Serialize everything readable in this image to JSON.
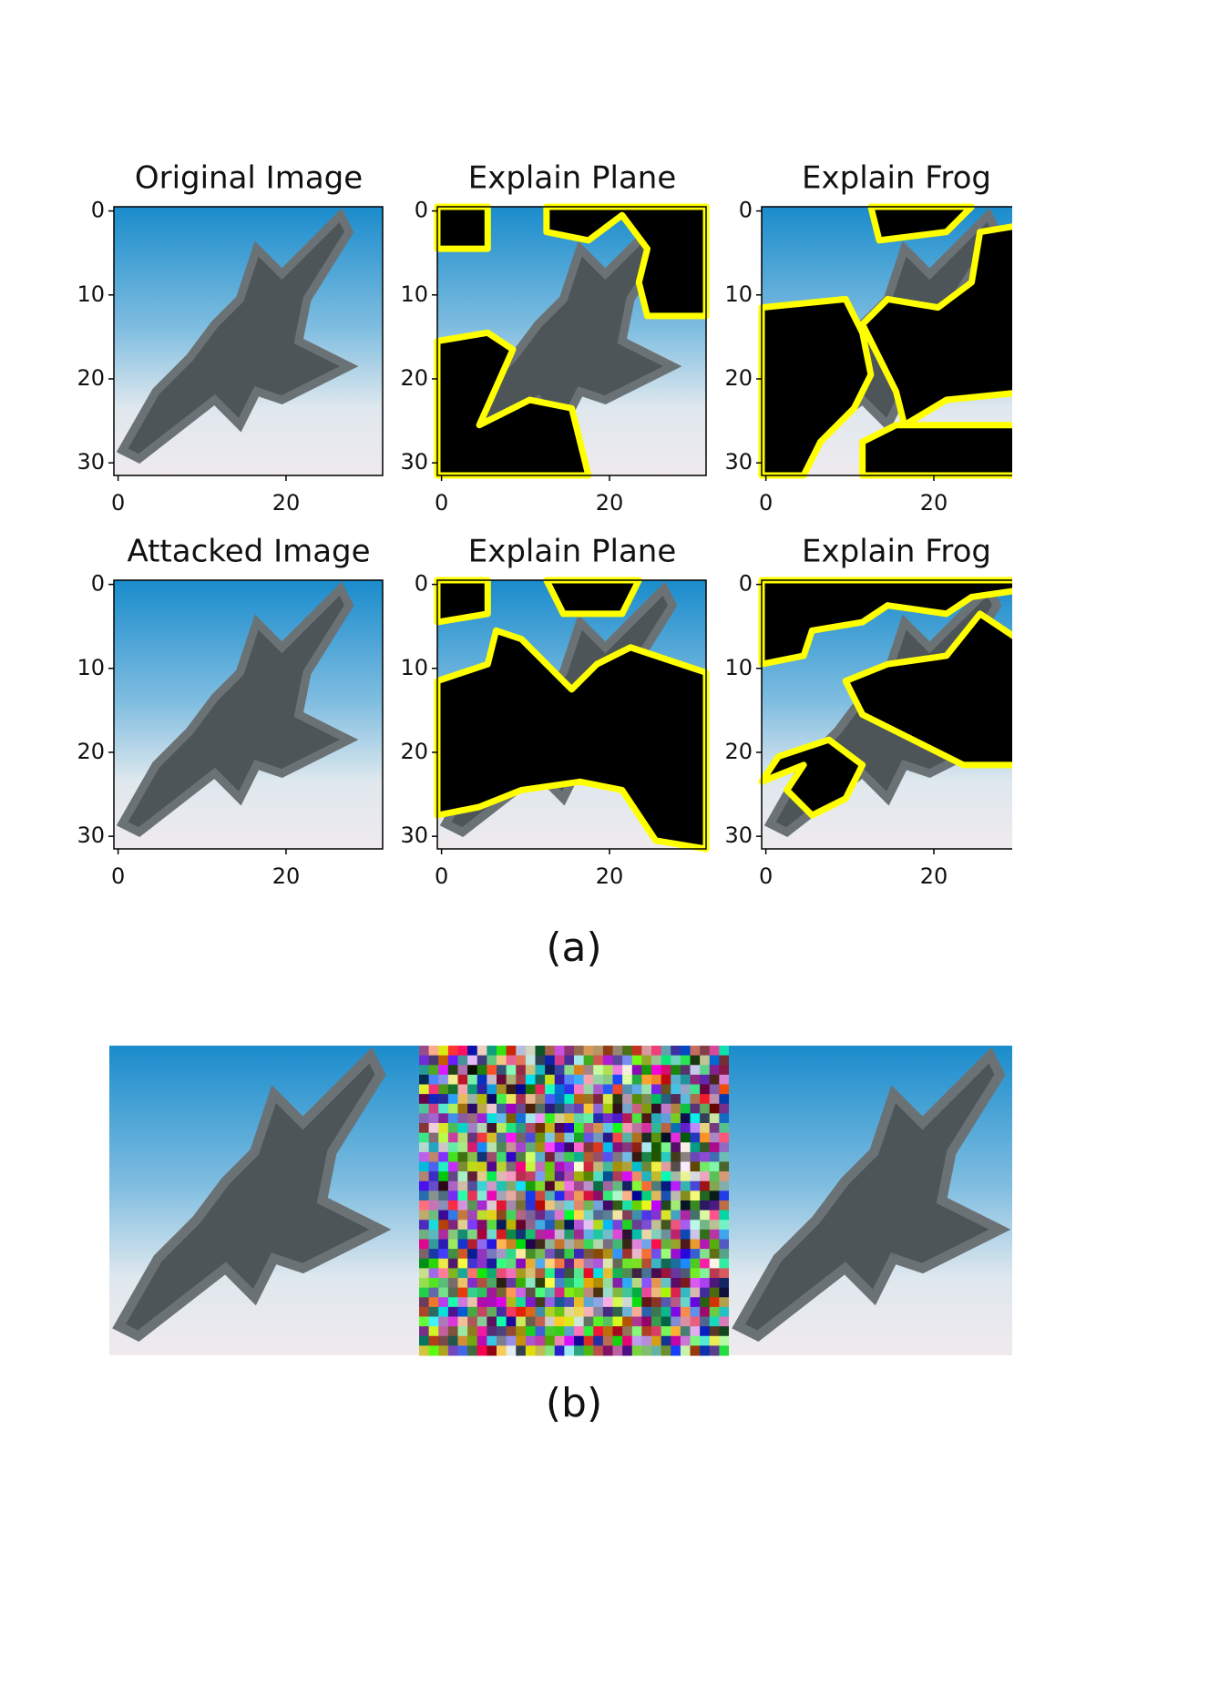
{
  "figure": {
    "panels": [
      {
        "title": "Original Image"
      },
      {
        "title": "Explain Plane"
      },
      {
        "title": "Explain Frog"
      },
      {
        "title": "Attacked Image"
      },
      {
        "title": "Explain Plane"
      },
      {
        "title": "Explain Frog"
      }
    ],
    "axes": {
      "yticks": [
        0,
        10,
        20,
        30
      ],
      "xticks": [
        0,
        20
      ]
    },
    "captions": [
      "(a)",
      "(b)"
    ]
  }
}
